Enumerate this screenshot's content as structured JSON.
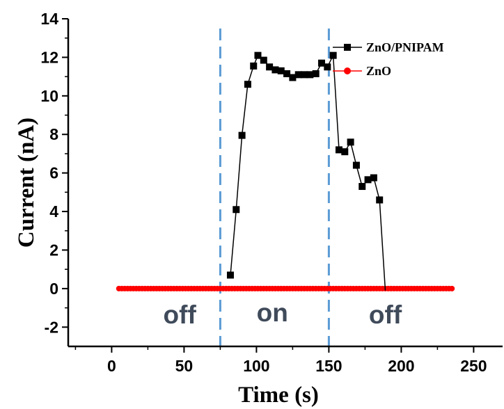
{
  "chart_data": {
    "type": "line",
    "xlabel": "Time (s)",
    "ylabel": "Current (nA)",
    "xlim": [
      -30,
      270
    ],
    "ylim": [
      -3,
      14
    ],
    "x_ticks": [
      0,
      50,
      100,
      150,
      200,
      250
    ],
    "y_ticks": [
      -2,
      0,
      2,
      4,
      6,
      8,
      10,
      12,
      14
    ],
    "markers": [
      {
        "x": 75,
        "style": "dashed",
        "color": "#5b9bd5"
      },
      {
        "x": 150,
        "style": "dashed",
        "color": "#5b9bd5"
      }
    ],
    "annotations": [
      {
        "text": "off",
        "x": 47,
        "y": -1.3
      },
      {
        "text": "on",
        "x": 111,
        "y": -1.2
      },
      {
        "text": "off",
        "x": 189,
        "y": -1.3
      }
    ],
    "annotation_color": "#3f4a5a",
    "legend_position": "top-right",
    "series": [
      {
        "name": "ZnO/PNIPAM",
        "color": "#000000",
        "marker": "square",
        "x": [
          82,
          86,
          90,
          94,
          98,
          101,
          105,
          109,
          113,
          117,
          121,
          125,
          129,
          133,
          137,
          141,
          145,
          149,
          153,
          157,
          161,
          165,
          169,
          173,
          177,
          181,
          185,
          189
        ],
        "y": [
          0.7,
          4.1,
          7.95,
          10.6,
          11.55,
          12.1,
          11.85,
          11.5,
          11.35,
          11.3,
          11.15,
          10.95,
          11.1,
          11.1,
          11.1,
          11.15,
          11.7,
          11.5,
          12.1,
          7.2,
          7.1,
          7.6,
          6.4,
          5.3,
          5.65,
          5.75,
          4.6,
          -0.1
        ]
      },
      {
        "name": "ZnO",
        "color": "#ff0000",
        "marker": "circle",
        "x_start": 5,
        "x_end": 235,
        "x_step": 2,
        "y_value": 0
      }
    ]
  }
}
